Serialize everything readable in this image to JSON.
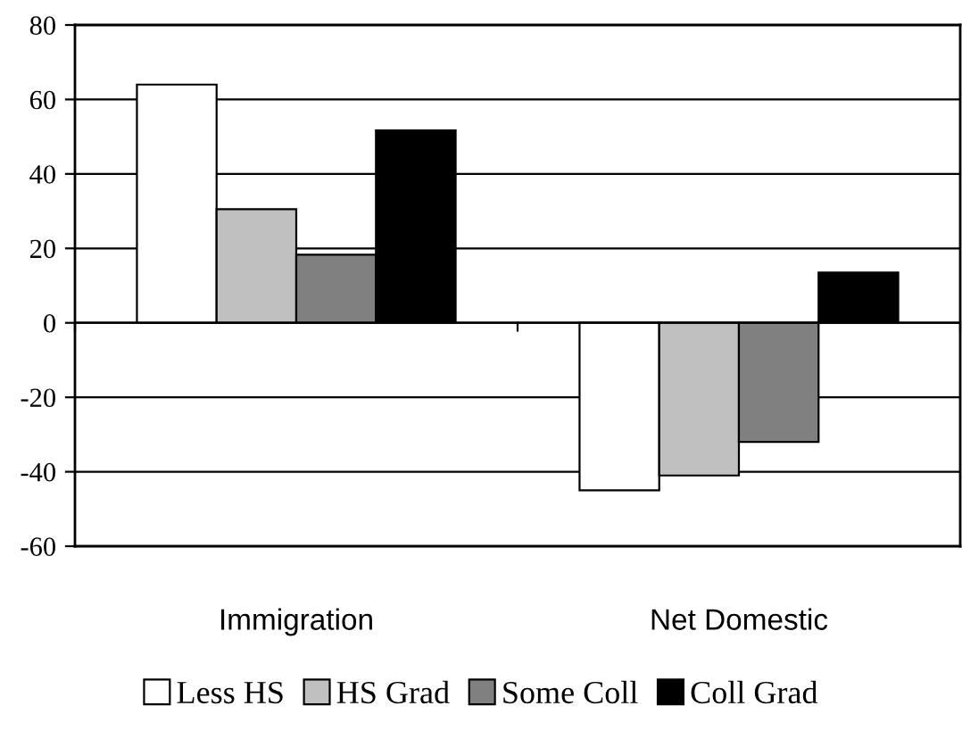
{
  "chart_data": {
    "type": "bar",
    "categories": [
      "Immigration",
      "Net Domestic"
    ],
    "series": [
      {
        "name": "Less HS",
        "color": "#ffffff",
        "values": [
          64,
          -45
        ]
      },
      {
        "name": "HS Grad",
        "color": "#c0c0c0",
        "values": [
          30.5,
          -41
        ]
      },
      {
        "name": "Some Coll",
        "color": "#808080",
        "values": [
          18.3,
          -32
        ]
      },
      {
        "name": "Coll Grad",
        "color": "#000000",
        "values": [
          51.7,
          13.5
        ]
      }
    ],
    "ylim": [
      -60,
      80
    ],
    "yticks": [
      -60,
      -40,
      -20,
      0,
      20,
      40,
      60,
      80
    ],
    "grid": "y",
    "legend": "bottom"
  }
}
